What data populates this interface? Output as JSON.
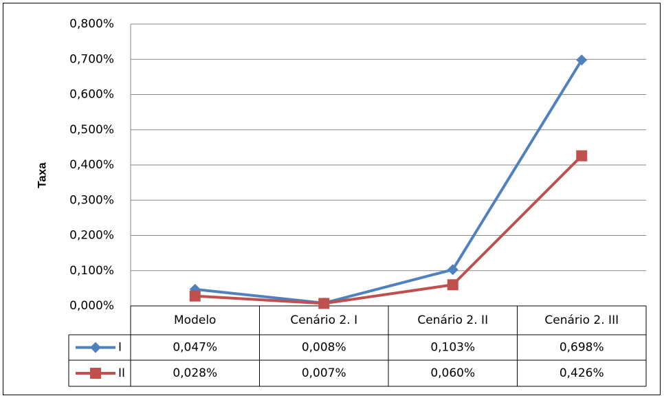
{
  "chart_data": {
    "type": "line",
    "y_label": "Taxa",
    "categories": [
      "Modelo",
      "Cenário 2. I",
      "Cenário 2. II",
      "Cenário 2. III"
    ],
    "series": [
      {
        "name": "I",
        "color": "#4f81bd",
        "marker": "diamond",
        "values": [
          0.047,
          0.008,
          0.103,
          0.698
        ],
        "value_labels": [
          "0,047%",
          "0,008%",
          "0,103%",
          "0,698%"
        ]
      },
      {
        "name": "II",
        "color": "#c0504d",
        "marker": "square",
        "values": [
          0.028,
          0.007,
          0.06,
          0.426
        ],
        "value_labels": [
          "0,028%",
          "0,007%",
          "0,060%",
          "0,426%"
        ]
      }
    ],
    "ylim": [
      0,
      0.8
    ],
    "yticks": [
      {
        "value": 0,
        "label": "0,000%"
      },
      {
        "value": 0.1,
        "label": "0,100%"
      },
      {
        "value": 0.2,
        "label": "0,200%"
      },
      {
        "value": 0.3,
        "label": "0,300%"
      },
      {
        "value": 0.4,
        "label": "0,400%"
      },
      {
        "value": 0.5,
        "label": "0,500%"
      },
      {
        "value": 0.6,
        "label": "0,600%"
      },
      {
        "value": 0.7,
        "label": "0,700%"
      },
      {
        "value": 0.8,
        "label": "0,800%"
      }
    ],
    "grid": true
  }
}
